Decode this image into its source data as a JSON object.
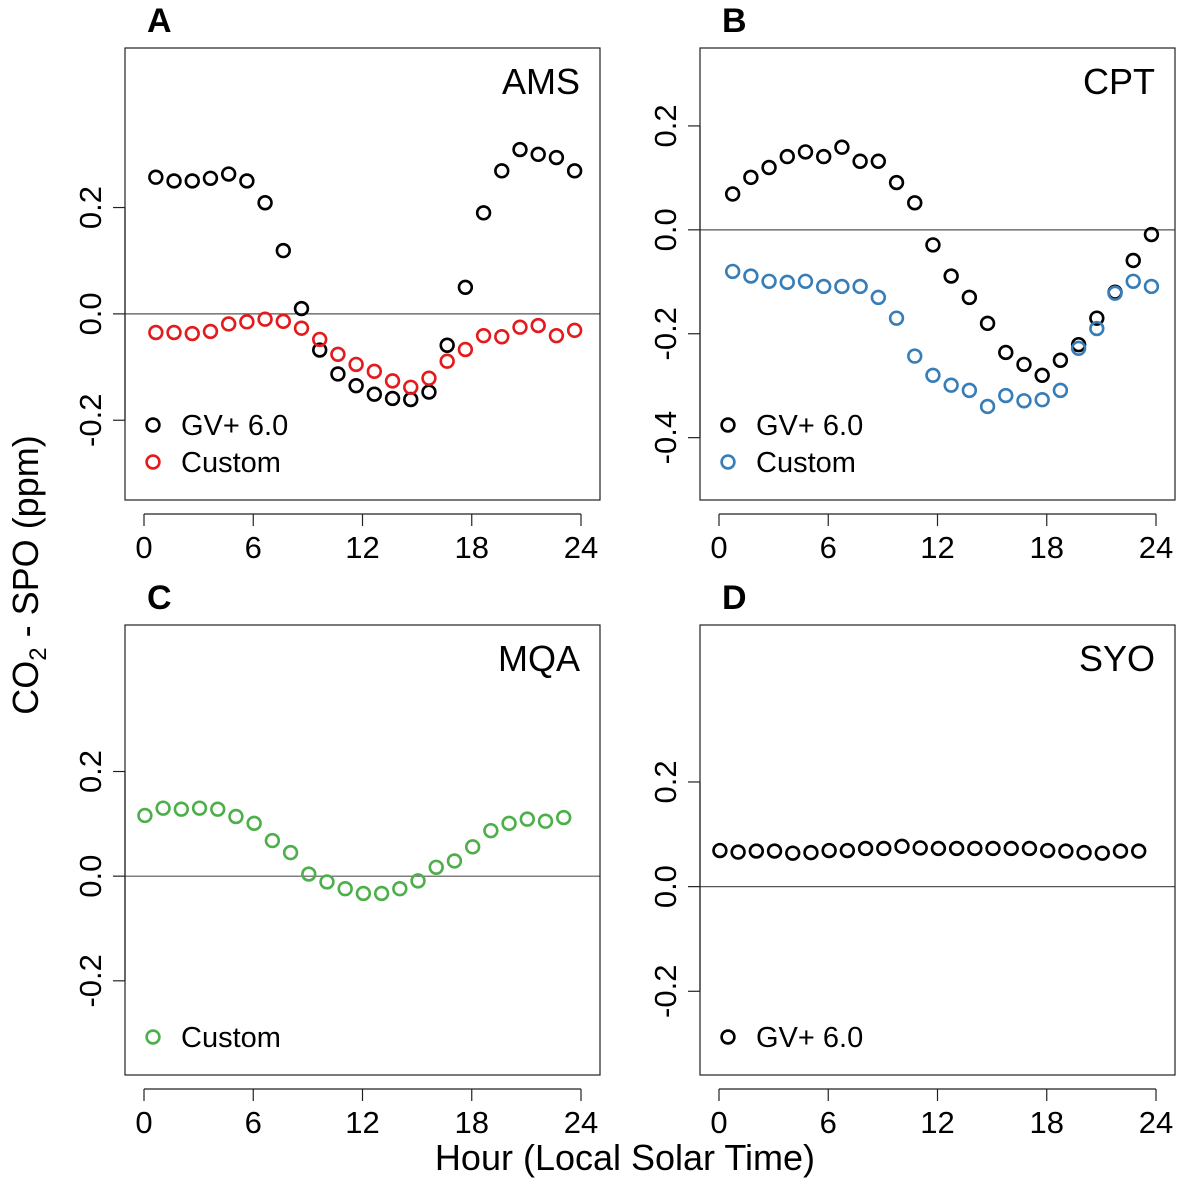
{
  "figure": {
    "ylabel_main": "CO",
    "ylabel_sub": "2",
    "ylabel_rest": " - SPO (ppm)",
    "xlabel": "Hour (Local Solar Time)"
  },
  "colors": {
    "gv": "#000000",
    "ams_custom": "#e41a1c",
    "cpt_custom": "#377eb8",
    "mqa_custom": "#4daf4a",
    "zero_line": "#555555"
  },
  "chart_data": [
    {
      "type": "scatter",
      "panel": "A",
      "title": "AMS",
      "xlim": [
        0,
        24
      ],
      "ylim": [
        -0.35,
        0.5
      ],
      "xticks": [
        0,
        6,
        12,
        18,
        24
      ],
      "yticks": [
        -0.2,
        0.0,
        0.2
      ],
      "ytick_labels": [
        "-0.2",
        "0.0",
        "0.2"
      ],
      "legend_position": "bottom-left",
      "series": [
        {
          "name": "GV+ 6.0",
          "color": "#000000",
          "x": [
            0.65,
            1.65,
            2.65,
            3.65,
            4.65,
            5.65,
            6.65,
            7.65,
            8.65,
            9.65,
            10.65,
            11.65,
            12.65,
            13.65,
            14.65,
            15.65,
            16.65,
            17.65,
            18.65,
            19.65,
            20.65,
            21.65,
            22.65,
            23.65
          ],
          "y": [
            0.257,
            0.25,
            0.25,
            0.255,
            0.263,
            0.25,
            0.209,
            0.119,
            0.01,
            -0.068,
            -0.113,
            -0.135,
            -0.151,
            -0.159,
            -0.161,
            -0.147,
            -0.059,
            0.05,
            0.19,
            0.269,
            0.309,
            0.3,
            0.294,
            0.269
          ]
        },
        {
          "name": "Custom",
          "color": "#e41a1c",
          "x": [
            0.65,
            1.65,
            2.65,
            3.65,
            4.65,
            5.65,
            6.65,
            7.65,
            8.65,
            9.65,
            10.65,
            11.65,
            12.65,
            13.65,
            14.65,
            15.65,
            16.65,
            17.65,
            18.65,
            19.65,
            20.65,
            21.65,
            22.65,
            23.65
          ],
          "y": [
            -0.035,
            -0.035,
            -0.037,
            -0.033,
            -0.019,
            -0.015,
            -0.01,
            -0.014,
            -0.027,
            -0.048,
            -0.076,
            -0.095,
            -0.108,
            -0.126,
            -0.138,
            -0.121,
            -0.089,
            -0.067,
            -0.041,
            -0.043,
            -0.025,
            -0.022,
            -0.041,
            -0.031
          ]
        }
      ]
    },
    {
      "type": "scatter",
      "panel": "B",
      "title": "CPT",
      "xlim": [
        0,
        24
      ],
      "ylim": [
        -0.52,
        0.35
      ],
      "xticks": [
        0,
        6,
        12,
        18,
        24
      ],
      "yticks": [
        -0.4,
        -0.2,
        0.0,
        0.2
      ],
      "ytick_labels": [
        "-0.4",
        "-0.2",
        "0.0",
        "0.2"
      ],
      "legend_position": "bottom-left",
      "series": [
        {
          "name": "GV+ 6.0",
          "color": "#000000",
          "x": [
            0.75,
            1.75,
            2.75,
            3.75,
            4.75,
            5.75,
            6.75,
            7.75,
            8.75,
            9.75,
            10.75,
            11.75,
            12.75,
            13.75,
            14.75,
            15.75,
            16.75,
            17.75,
            18.75,
            19.75,
            20.75,
            21.75,
            22.75,
            23.75
          ],
          "y": [
            0.069,
            0.101,
            0.12,
            0.141,
            0.15,
            0.141,
            0.159,
            0.132,
            0.132,
            0.091,
            0.052,
            -0.029,
            -0.089,
            -0.13,
            -0.18,
            -0.236,
            -0.259,
            -0.28,
            -0.251,
            -0.221,
            -0.17,
            -0.12,
            -0.059,
            -0.009
          ]
        },
        {
          "name": "Custom",
          "color": "#377eb8",
          "x": [
            0.75,
            1.75,
            2.75,
            3.75,
            4.75,
            5.75,
            6.75,
            7.75,
            8.75,
            9.75,
            10.75,
            11.75,
            12.75,
            13.75,
            14.75,
            15.75,
            16.75,
            17.75,
            18.75,
            19.75,
            20.75,
            21.75,
            22.75,
            23.75
          ],
          "y": [
            -0.08,
            -0.089,
            -0.099,
            -0.101,
            -0.099,
            -0.109,
            -0.109,
            -0.109,
            -0.13,
            -0.17,
            -0.243,
            -0.28,
            -0.299,
            -0.309,
            -0.34,
            -0.319,
            -0.329,
            -0.327,
            -0.309,
            -0.228,
            -0.19,
            -0.122,
            -0.099,
            -0.109
          ]
        }
      ]
    },
    {
      "type": "scatter",
      "panel": "C",
      "title": "MQA",
      "xlim": [
        0,
        24
      ],
      "ylim": [
        -0.38,
        0.48
      ],
      "xticks": [
        0,
        6,
        12,
        18,
        24
      ],
      "yticks": [
        -0.2,
        0.0,
        0.2
      ],
      "ytick_labels": [
        "-0.2",
        "0.0",
        "0.2"
      ],
      "legend_position": "bottom-left",
      "series": [
        {
          "name": "Custom",
          "color": "#4daf4a",
          "x": [
            0.05,
            1.05,
            2.05,
            3.05,
            4.05,
            5.05,
            6.05,
            7.05,
            8.05,
            9.05,
            10.05,
            11.05,
            12.05,
            13.05,
            14.05,
            15.05,
            16.05,
            17.05,
            18.05,
            19.05,
            20.05,
            21.05,
            22.05,
            23.05
          ],
          "y": [
            0.116,
            0.13,
            0.128,
            0.13,
            0.128,
            0.114,
            0.101,
            0.068,
            0.045,
            0.004,
            -0.011,
            -0.024,
            -0.033,
            -0.033,
            -0.024,
            -0.009,
            0.017,
            0.029,
            0.056,
            0.087,
            0.101,
            0.109,
            0.105,
            0.112
          ]
        }
      ]
    },
    {
      "type": "scatter",
      "panel": "D",
      "title": "SYO",
      "xlim": [
        0,
        24
      ],
      "ylim": [
        -0.36,
        0.5
      ],
      "xticks": [
        0,
        6,
        12,
        18,
        24
      ],
      "yticks": [
        -0.2,
        0.0,
        0.2
      ],
      "ytick_labels": [
        "-0.2",
        "0.0",
        "0.2"
      ],
      "legend_position": "bottom-left",
      "series": [
        {
          "name": "GV+ 6.0",
          "color": "#000000",
          "x": [
            0.05,
            1.05,
            2.05,
            3.05,
            4.05,
            5.05,
            6.05,
            7.05,
            8.05,
            9.05,
            10.05,
            11.05,
            12.05,
            13.05,
            14.05,
            15.05,
            16.05,
            17.05,
            18.05,
            19.05,
            20.05,
            21.05,
            22.05,
            23.05
          ],
          "y": [
            0.069,
            0.066,
            0.068,
            0.068,
            0.064,
            0.065,
            0.069,
            0.069,
            0.073,
            0.073,
            0.077,
            0.074,
            0.073,
            0.073,
            0.073,
            0.073,
            0.073,
            0.073,
            0.069,
            0.068,
            0.065,
            0.064,
            0.068,
            0.068
          ]
        }
      ]
    }
  ]
}
